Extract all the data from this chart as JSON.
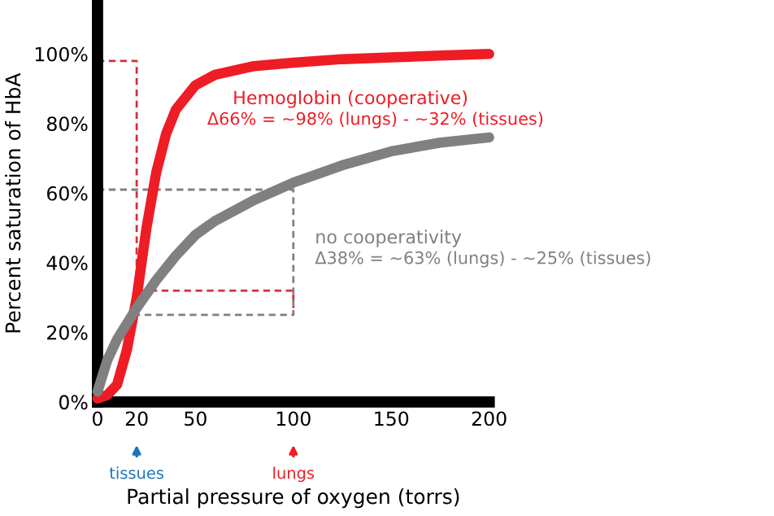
{
  "chart_data": {
    "type": "line",
    "xlabel": "Partial pressure of oxygen (torrs)",
    "ylabel": "Percent saturation of HbA",
    "xlim": [
      0,
      200
    ],
    "xticks": [
      0,
      20,
      50,
      100,
      150,
      200
    ],
    "ylim": [
      0,
      114
    ],
    "yticks": [
      {
        "value": 0,
        "label": "0%"
      },
      {
        "value": 20,
        "label": "20%"
      },
      {
        "value": 40,
        "label": "40%"
      },
      {
        "value": 60,
        "label": "60%"
      },
      {
        "value": 80,
        "label": "80%"
      },
      {
        "value": 100,
        "label": "100%"
      }
    ],
    "grid": false,
    "legend": false,
    "marker": "none",
    "series": [
      {
        "name": "Hemoglobin (cooperative)",
        "color": "#ee1c25",
        "x": [
          0,
          5,
          10,
          15,
          20,
          25,
          30,
          35,
          40,
          50,
          60,
          80,
          100,
          125,
          150,
          175,
          200
        ],
        "values": [
          1,
          2,
          5,
          15,
          30,
          50,
          66,
          77,
          84,
          91,
          94,
          96.5,
          97.5,
          98.5,
          99,
          99.5,
          100
        ],
        "line_style": "solid"
      },
      {
        "name": "no cooperativity",
        "color": "#808080",
        "x": [
          0,
          5,
          10,
          20,
          30,
          40,
          50,
          60,
          80,
          100,
          125,
          150,
          175,
          200
        ],
        "values": [
          3,
          12,
          18,
          27,
          35,
          42,
          48,
          52,
          58,
          63,
          68,
          72,
          74.5,
          76
        ],
        "line_style": "solid"
      },
      {
        "color": "#d0303a",
        "x": [
          0,
          20,
          20,
          100,
          100
        ],
        "values": [
          98,
          98,
          32,
          32,
          27
        ],
        "line_style": "dashed"
      },
      {
        "color": "#808080",
        "x": [
          0,
          100,
          100,
          20
        ],
        "values": [
          61,
          61,
          25,
          25
        ],
        "line_style": "dashed"
      }
    ],
    "annotations": [
      "Δ66% = ~98% (lungs) - ~32% (tissues)",
      "Δ38% = ~63% (lungs) - ~25% (tissues)",
      "tissues",
      "lungs"
    ]
  }
}
